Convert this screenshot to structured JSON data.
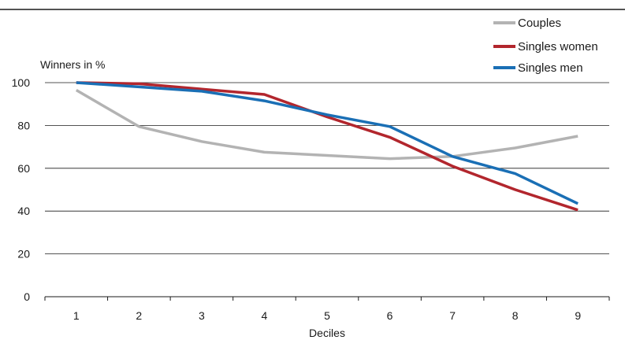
{
  "chart_data": {
    "type": "line",
    "title": "",
    "xlabel": "Deciles",
    "ylabel": "Winners in %",
    "categories": [
      "1",
      "2",
      "3",
      "4",
      "5",
      "6",
      "7",
      "8",
      "9"
    ],
    "ylim": [
      0,
      100
    ],
    "yticks": [
      "0",
      "20",
      "40",
      "60",
      "80",
      "100"
    ],
    "grid": "horizontal",
    "legend_position": "top-right",
    "series": [
      {
        "name": "Couples",
        "color": "#b3b3b3",
        "values": [
          96.5,
          79.5,
          72.5,
          67.5,
          66,
          64.5,
          65.5,
          69.5,
          75
        ]
      },
      {
        "name": "Singles women",
        "color": "#b2262d",
        "values": [
          100,
          99.5,
          97,
          94.5,
          84,
          74.5,
          61,
          50,
          40.5
        ]
      },
      {
        "name": "Singles men",
        "color": "#1a6fb5",
        "values": [
          100,
          98,
          96,
          91.5,
          85,
          79.5,
          65.5,
          57.5,
          43.5
        ]
      }
    ]
  }
}
